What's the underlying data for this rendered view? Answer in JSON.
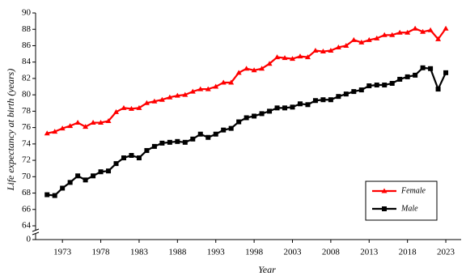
{
  "chart_data": {
    "type": "line",
    "x_label": "Year",
    "y_label": "Life expectancy at birth (years)",
    "x": [
      1971,
      1972,
      1973,
      1974,
      1975,
      1976,
      1977,
      1978,
      1979,
      1980,
      1981,
      1982,
      1983,
      1984,
      1985,
      1986,
      1987,
      1988,
      1989,
      1990,
      1991,
      1992,
      1993,
      1994,
      1995,
      1996,
      1997,
      1998,
      1999,
      2000,
      2001,
      2002,
      2003,
      2004,
      2005,
      2006,
      2007,
      2008,
      2009,
      2010,
      2011,
      2012,
      2013,
      2014,
      2015,
      2016,
      2017,
      2018,
      2019,
      2020,
      2021,
      2022,
      2023
    ],
    "series": [
      {
        "name": "Female",
        "color": "#ff0000",
        "marker": "triangle",
        "values": [
          75.3,
          75.5,
          75.9,
          76.2,
          76.6,
          76.1,
          76.6,
          76.6,
          76.8,
          77.9,
          78.4,
          78.3,
          78.4,
          79.0,
          79.2,
          79.4,
          79.7,
          79.9,
          80.0,
          80.4,
          80.7,
          80.7,
          81.0,
          81.5,
          81.5,
          82.7,
          83.2,
          83.0,
          83.2,
          83.8,
          84.6,
          84.5,
          84.4,
          84.7,
          84.6,
          85.4,
          85.3,
          85.4,
          85.8,
          86.0,
          86.7,
          86.4,
          86.7,
          86.9,
          87.3,
          87.3,
          87.6,
          87.6,
          88.1,
          87.7,
          87.9,
          86.8,
          88.1
        ]
      },
      {
        "name": "Male",
        "color": "#000000",
        "marker": "square",
        "values": [
          67.8,
          67.7,
          68.6,
          69.3,
          70.1,
          69.6,
          70.1,
          70.6,
          70.7,
          71.6,
          72.3,
          72.6,
          72.3,
          73.2,
          73.7,
          74.1,
          74.2,
          74.3,
          74.2,
          74.6,
          75.2,
          74.8,
          75.2,
          75.7,
          75.9,
          76.7,
          77.2,
          77.4,
          77.7,
          78.0,
          78.4,
          78.4,
          78.5,
          78.9,
          78.8,
          79.3,
          79.4,
          79.4,
          79.8,
          80.1,
          80.4,
          80.6,
          81.1,
          81.2,
          81.2,
          81.4,
          81.9,
          82.2,
          82.4,
          83.3,
          83.2,
          80.7,
          82.7
        ]
      }
    ],
    "xlim": [
      1969.5,
      2025
    ],
    "xticks": [
      1973,
      1978,
      1983,
      1988,
      1993,
      1998,
      2003,
      2008,
      2013,
      2018,
      2023
    ],
    "ylim": [
      62.3,
      90
    ],
    "yticks": [
      0,
      64,
      66,
      68,
      70,
      72,
      74,
      76,
      78,
      80,
      82,
      84,
      86,
      88,
      90
    ],
    "axis_break": true,
    "legend": "lower right"
  }
}
